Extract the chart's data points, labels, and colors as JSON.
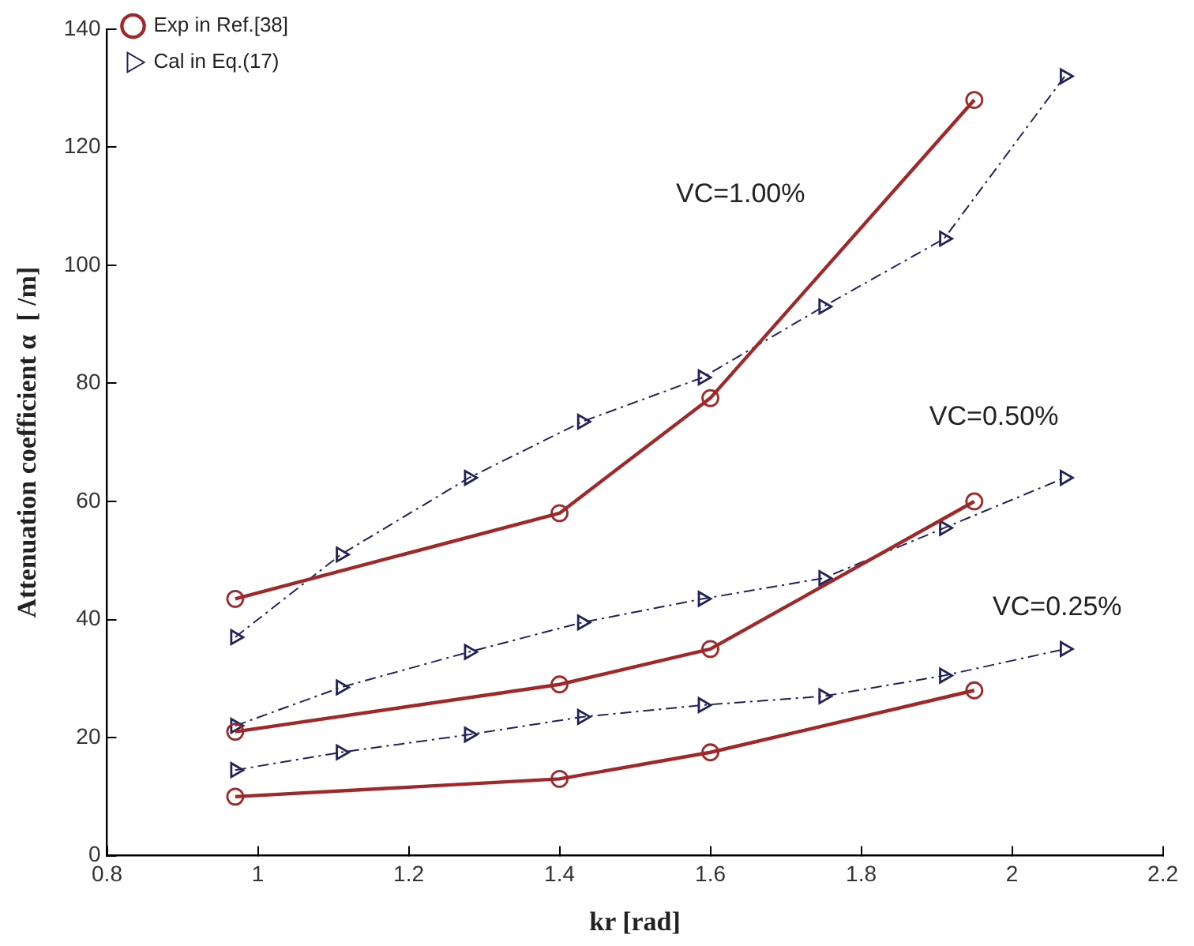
{
  "chart_data": {
    "type": "line",
    "xlabel": "kr [rad]",
    "ylabel": "Attenuation coefficient α  [ /m]",
    "xlim": [
      0.8,
      2.2
    ],
    "xticks": [
      {
        "value": 0.8,
        "label": "0.8"
      },
      1,
      1.2,
      1.4,
      1.6,
      1.8,
      2,
      2.2
    ],
    "ylim": [
      0,
      140
    ],
    "yticks": [
      0,
      20,
      40,
      60,
      80,
      100,
      120,
      140
    ],
    "grid": false,
    "legend": "top left",
    "series": [
      {
        "name": "Exp in Ref.[38]",
        "color": "#a02828",
        "marker": "circle",
        "line_style": "solid",
        "x": [
          0.97,
          1.4,
          1.6,
          1.95
        ],
        "values": [
          43.5,
          58,
          77.5,
          128
        ]
      },
      {
        "name": "Cal in Eq.(17)",
        "color": "#22225a",
        "marker": "triangle",
        "line_style": "dashed",
        "x": [
          0.97,
          1.11,
          1.28,
          1.43,
          1.59,
          1.75,
          1.91,
          2.07
        ],
        "values": [
          37,
          51,
          64,
          73.5,
          81,
          93,
          104.5,
          132
        ]
      },
      {
        "color": "#a02828",
        "marker": "circle",
        "line_style": "solid",
        "x": [
          0.97,
          1.4,
          1.6,
          1.95
        ],
        "values": [
          21,
          29,
          35,
          60
        ]
      },
      {
        "color": "#22225a",
        "marker": "triangle",
        "line_style": "dashed",
        "x": [
          0.97,
          1.11,
          1.28,
          1.43,
          1.59,
          1.75,
          1.91,
          2.07
        ],
        "values": [
          22,
          28.5,
          34.5,
          39.5,
          43.5,
          47,
          55.5,
          64
        ]
      },
      {
        "color": "#a02828",
        "marker": "circle",
        "line_style": "solid",
        "x": [
          0.97,
          1.4,
          1.6,
          1.95
        ],
        "values": [
          10,
          13,
          17.5,
          28
        ]
      },
      {
        "color": "#22225a",
        "marker": "triangle",
        "line_style": "dashed",
        "x": [
          0.97,
          1.11,
          1.28,
          1.43,
          1.59,
          1.75,
          1.91,
          2.07
        ],
        "values": [
          14.5,
          17.5,
          20.5,
          23.5,
          25.5,
          27,
          30.5,
          35
        ]
      }
    ],
    "annotations": [
      "VC=1.00%",
      "VC=0.50%",
      "VC=0.25%"
    ]
  }
}
